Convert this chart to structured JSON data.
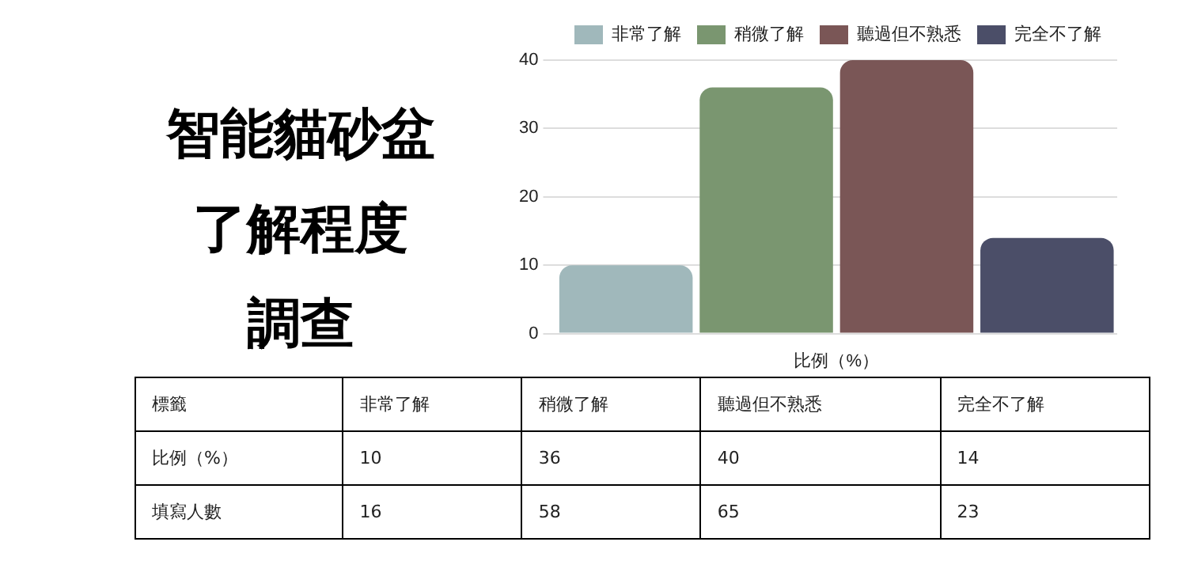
{
  "chart_data": {
    "type": "bar",
    "title": "智能貓砂盆",
    "subtitle": "了解程度調查",
    "categories": [
      "比例（%）"
    ],
    "series": [
      {
        "name": "非常了解",
        "color": "#a0b8bb",
        "values": [
          10
        ]
      },
      {
        "name": "稍微了解",
        "color": "#7a9670",
        "values": [
          36
        ]
      },
      {
        "name": "聽過但不熟悉",
        "color": "#7a5656",
        "values": [
          40
        ]
      },
      {
        "name": "完全不了解",
        "color": "#4b4e68",
        "values": [
          14
        ]
      }
    ],
    "ylim": [
      0,
      40
    ],
    "yticks": [
      0,
      10,
      20,
      30,
      40
    ],
    "grid": "y",
    "legend": "top",
    "annotations": [
      "標籤",
      "比例（%）",
      "10",
      "36",
      "40",
      "14",
      "填寫人數",
      "16",
      "58",
      "65",
      "23"
    ]
  }
}
